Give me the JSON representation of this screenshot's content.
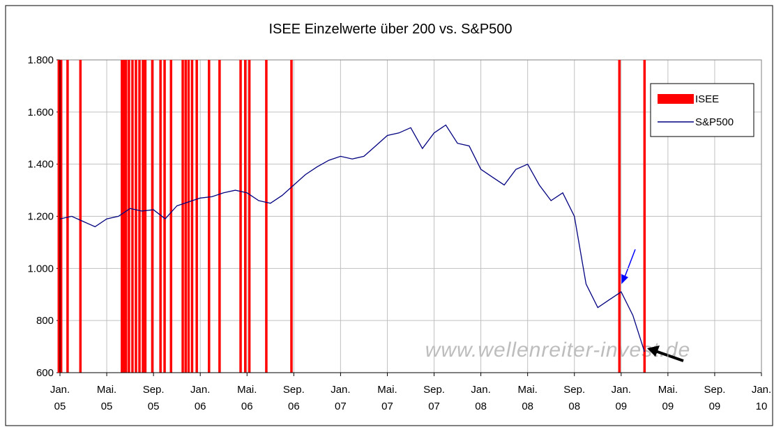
{
  "chart_data": {
    "type": "line",
    "title": "ISEE Einzelwerte über 200 vs. S&P500",
    "annotation": "www.wellenreiter-invest.de",
    "xlim": [
      0,
      60
    ],
    "xticks": [
      {
        "value": 0,
        "label": "Jan. 05"
      },
      {
        "value": 4,
        "label": "Mai. 05"
      },
      {
        "value": 8,
        "label": "Sep. 05"
      },
      {
        "value": 12,
        "label": "Jan. 06"
      },
      {
        "value": 16,
        "label": "Mai. 06"
      },
      {
        "value": 20,
        "label": "Sep. 06"
      },
      {
        "value": 24,
        "label": "Jan. 07"
      },
      {
        "value": 28,
        "label": "Mai. 07"
      },
      {
        "value": 32,
        "label": "Sep. 07"
      },
      {
        "value": 36,
        "label": "Jan. 08"
      },
      {
        "value": 40,
        "label": "Mai. 08"
      },
      {
        "value": 44,
        "label": "Sep. 08"
      },
      {
        "value": 48,
        "label": "Jan. 09"
      },
      {
        "value": 52,
        "label": "Mai. 09"
      },
      {
        "value": 56,
        "label": "Sep. 09"
      },
      {
        "value": 60,
        "label": "Jan. 10"
      }
    ],
    "ylim": [
      600,
      1800
    ],
    "yticks": [
      600,
      800,
      {
        "value": 1000,
        "label": "1.000"
      },
      {
        "value": 1200,
        "label": "1.200"
      },
      {
        "value": 1400,
        "label": "1.400"
      },
      {
        "value": 1600,
        "label": "1.600"
      },
      {
        "value": 1800,
        "label": "1.800"
      }
    ],
    "grid": true,
    "legend": "top-right",
    "series": [
      {
        "name": "ISEE",
        "color": "#ff0000",
        "type": "events",
        "x": [
          -0.1,
          0.1,
          0.65,
          1.75,
          5.3,
          5.5,
          5.65,
          5.9,
          6.2,
          6.5,
          6.8,
          7.1,
          7.3,
          7.9,
          8.6,
          8.95,
          9.5,
          10.5,
          10.75,
          11.0,
          11.3,
          11.7,
          12.75,
          13.65,
          15.45,
          15.85,
          16.2,
          17.65,
          19.8,
          47.85,
          50.0
        ]
      },
      {
        "name": "S&P500",
        "color": "#000080",
        "type": "line",
        "x": [
          0,
          1,
          2,
          3,
          4,
          5,
          6,
          7,
          8,
          9,
          10,
          11,
          12,
          13,
          14,
          15,
          16,
          17,
          18,
          19,
          20,
          21,
          22,
          23,
          24,
          25,
          26,
          27,
          28,
          29,
          30,
          31,
          32,
          33,
          34,
          35,
          36,
          37,
          38,
          39,
          40,
          41,
          42,
          43,
          44,
          45,
          46,
          47,
          48,
          49,
          50
        ],
        "values": [
          1190,
          1200,
          1180,
          1160,
          1190,
          1200,
          1230,
          1220,
          1225,
          1190,
          1240,
          1255,
          1270,
          1275,
          1290,
          1300,
          1290,
          1260,
          1250,
          1280,
          1320,
          1360,
          1390,
          1415,
          1430,
          1420,
          1430,
          1470,
          1510,
          1520,
          1540,
          1460,
          1520,
          1550,
          1480,
          1470,
          1380,
          1350,
          1320,
          1380,
          1400,
          1320,
          1260,
          1290,
          1200,
          940,
          850,
          880,
          910,
          820,
          680
        ]
      }
    ]
  }
}
